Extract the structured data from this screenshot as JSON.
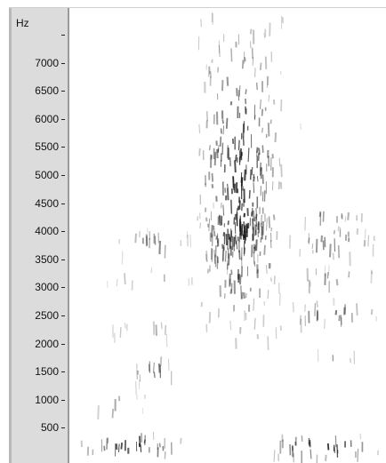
{
  "spectrogram": {
    "unit_label": "Hz",
    "ticks": [
      {
        "value": 7500,
        "label": ""
      },
      {
        "value": 7000,
        "label": "7000"
      },
      {
        "value": 6500,
        "label": "6500"
      },
      {
        "value": 6000,
        "label": "6000"
      },
      {
        "value": 5500,
        "label": "5500"
      },
      {
        "value": 5000,
        "label": "5000"
      },
      {
        "value": 4500,
        "label": "4500"
      },
      {
        "value": 4000,
        "label": "4000"
      },
      {
        "value": 3500,
        "label": "3500"
      },
      {
        "value": 3000,
        "label": "3000"
      },
      {
        "value": 2500,
        "label": "2500"
      },
      {
        "value": 2000,
        "label": "2000"
      },
      {
        "value": 1500,
        "label": "1500"
      },
      {
        "value": 1000,
        "label": "1000"
      },
      {
        "value": 500,
        "label": "500"
      }
    ],
    "freq_range": [
      0,
      8100
    ],
    "colors": {
      "ink": "#111111",
      "panel": "#dcdcdc",
      "background": "#ffffff"
    }
  }
}
